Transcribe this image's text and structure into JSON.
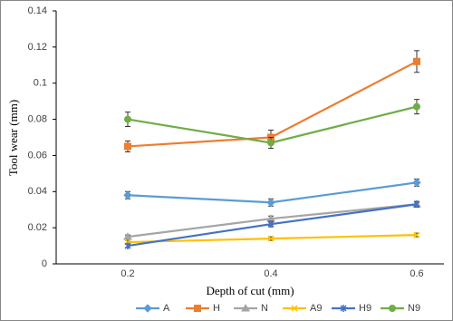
{
  "chart_data": {
    "type": "line",
    "x_label": "Depth of cut (mm)",
    "y_label": "Tool wear (mm)",
    "categories": [
      "0.2",
      "0.4",
      "0.6"
    ],
    "ylim": [
      0,
      0.14
    ],
    "yticks": [
      0,
      0.02,
      0.04,
      0.06,
      0.08,
      0.1,
      0.12,
      0.14
    ],
    "grid": false,
    "legend": "bottom",
    "series": [
      {
        "name": "A",
        "color": "#5b9bd5",
        "marker": "diamond",
        "values": [
          0.038,
          0.034,
          0.045
        ],
        "errors": [
          0.002,
          0.002,
          0.002
        ]
      },
      {
        "name": "H",
        "color": "#ed7d31",
        "marker": "square",
        "values": [
          0.065,
          0.07,
          0.112
        ],
        "errors": [
          0.003,
          0.004,
          0.006
        ]
      },
      {
        "name": "N",
        "color": "#a5a5a5",
        "marker": "triangle",
        "values": [
          0.015,
          0.025,
          0.033
        ],
        "errors": [
          0.001,
          0.0015,
          0.0015
        ]
      },
      {
        "name": "A9",
        "color": "#ffc000",
        "marker": "x",
        "values": [
          0.012,
          0.014,
          0.016
        ],
        "errors": [
          0.001,
          0.001,
          0.001
        ]
      },
      {
        "name": "H9",
        "color": "#4472c4",
        "marker": "star",
        "values": [
          0.01,
          0.022,
          0.033
        ],
        "errors": [
          0.001,
          0.0015,
          0.0015
        ]
      },
      {
        "name": "N9",
        "color": "#70ad47",
        "marker": "circle",
        "values": [
          0.08,
          0.067,
          0.087
        ],
        "errors": [
          0.004,
          0.003,
          0.004
        ]
      }
    ]
  }
}
